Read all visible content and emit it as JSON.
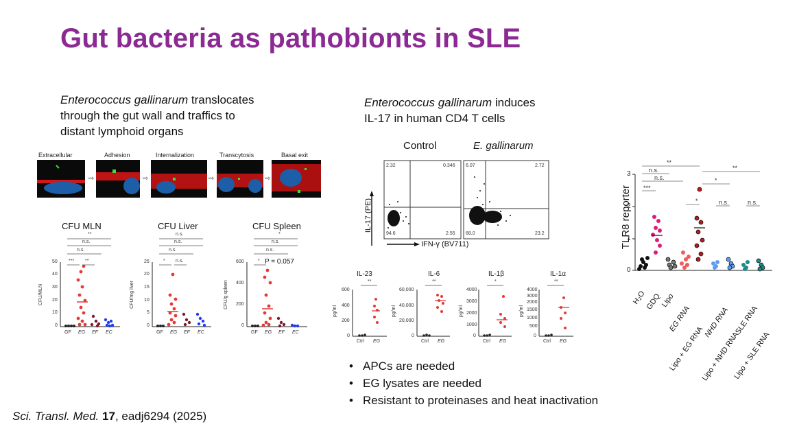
{
  "slide": {
    "title": "Gut bacteria as pathobionts in SLE",
    "left_caption": {
      "italic": "Enterococcus gallinarum",
      "line1_rest": " translocates",
      "line2": "through the gut wall and traffics to",
      "line3": "distant lymphoid organs"
    },
    "middle_caption": {
      "italic": "Enterococcus gallinarum",
      "line1_rest": " induces",
      "line2": "IL-17 in human CD4 T cells"
    },
    "micro_labels": [
      "Extracellular",
      "Adhesion",
      "Internalization",
      "Transcytosis",
      "Basal exit"
    ],
    "cfu_panels": [
      {
        "title": "CFU MLN",
        "ylabel": "CFU/MLN",
        "yticks": [
          "0",
          "10",
          "20",
          "30",
          "40",
          "50"
        ],
        "groups": [
          "GF",
          "EG",
          "EF",
          "EC"
        ],
        "sig": [
          "**",
          "n.s.",
          "n.s.",
          "***",
          "**"
        ]
      },
      {
        "title": "CFU Liver",
        "ylabel": "CFU/mg liver",
        "yticks": [
          "0",
          "5",
          "10",
          "15",
          "20",
          "25"
        ],
        "groups": [
          "GF",
          "EG",
          "EF",
          "EC"
        ],
        "sig": [
          "n.s.",
          "n.s.",
          "n.s.",
          "*",
          "n.s."
        ]
      },
      {
        "title": "CFU Spleen",
        "ylabel": "CFU/g spleen",
        "yticks": [
          "0",
          "200",
          "400",
          "600"
        ],
        "groups": [
          "GF",
          "EG",
          "EF",
          "EC"
        ],
        "sig": [
          "*",
          "n.s.",
          "n.s.",
          "*",
          "P = 0.057"
        ]
      }
    ],
    "flow": {
      "control_label": "Control",
      "eg_label": "E. gallinarum",
      "y_axis": "IL-17 (PE)",
      "x_axis": "IFN-γ (BV711)",
      "control_quadrants": [
        "2.32",
        "0.346",
        "94.6",
        "2.55"
      ],
      "eg_quadrants": [
        "6.07",
        "2.72",
        "68.0",
        "23.2"
      ]
    },
    "cytokines": [
      {
        "title": "IL-23",
        "yticks": [
          "0",
          "200",
          "400",
          "600"
        ],
        "sig": "**",
        "groups": [
          "Ctrl",
          "EG"
        ],
        "ylabel": "pg/ml"
      },
      {
        "title": "IL-6",
        "yticks": [
          "0",
          "20,000",
          "40,000",
          "60,000"
        ],
        "sig": "**",
        "groups": [
          "Ctrl",
          "EG"
        ],
        "ylabel": "pg/ml"
      },
      {
        "title": "IL-1β",
        "yticks": [
          "0",
          "1000",
          "2000",
          "3000",
          "4000"
        ],
        "sig": "*",
        "groups": [
          "Ctrl",
          "EG"
        ],
        "ylabel": "pg/ml"
      },
      {
        "title": "IL-1α",
        "yticks": [
          "0",
          "500",
          "1000",
          "1500",
          "2000",
          "3000",
          "4000"
        ],
        "sig": "**",
        "groups": [
          "Ctrl",
          "EG"
        ],
        "ylabel": "pg/ml"
      }
    ],
    "tlr8": {
      "ylabel": "TLR8 reporter",
      "yticks": [
        "0",
        "1",
        "2",
        "3"
      ],
      "categories": [
        "H₂O",
        "GDQ",
        "Lipo",
        "EG RNA",
        "Lipo + EG RNA",
        "NHD RNA",
        "Lipo + NHD RNA",
        "SLE RNA",
        "Lipo + SLE RNA"
      ],
      "sig": [
        "**",
        "n.s.",
        "n.s.",
        "***",
        "*",
        "**",
        "*",
        "n.s.",
        "n.s."
      ]
    },
    "bullets": [
      "APCs are needed",
      "EG lysates are needed",
      "Resistant to proteinases and heat inactivation"
    ],
    "citation": {
      "journal": "Sci. Transl. Med.",
      "volume": "17",
      "rest": ", eadj6294 (2025)"
    },
    "colors": {
      "title": "#8b2a93",
      "red": "#e53935",
      "dark_red": "#7a1a2a",
      "blue": "#1e3cf0",
      "magenta": "#e0197d",
      "teal": "#1f8a8a"
    }
  }
}
